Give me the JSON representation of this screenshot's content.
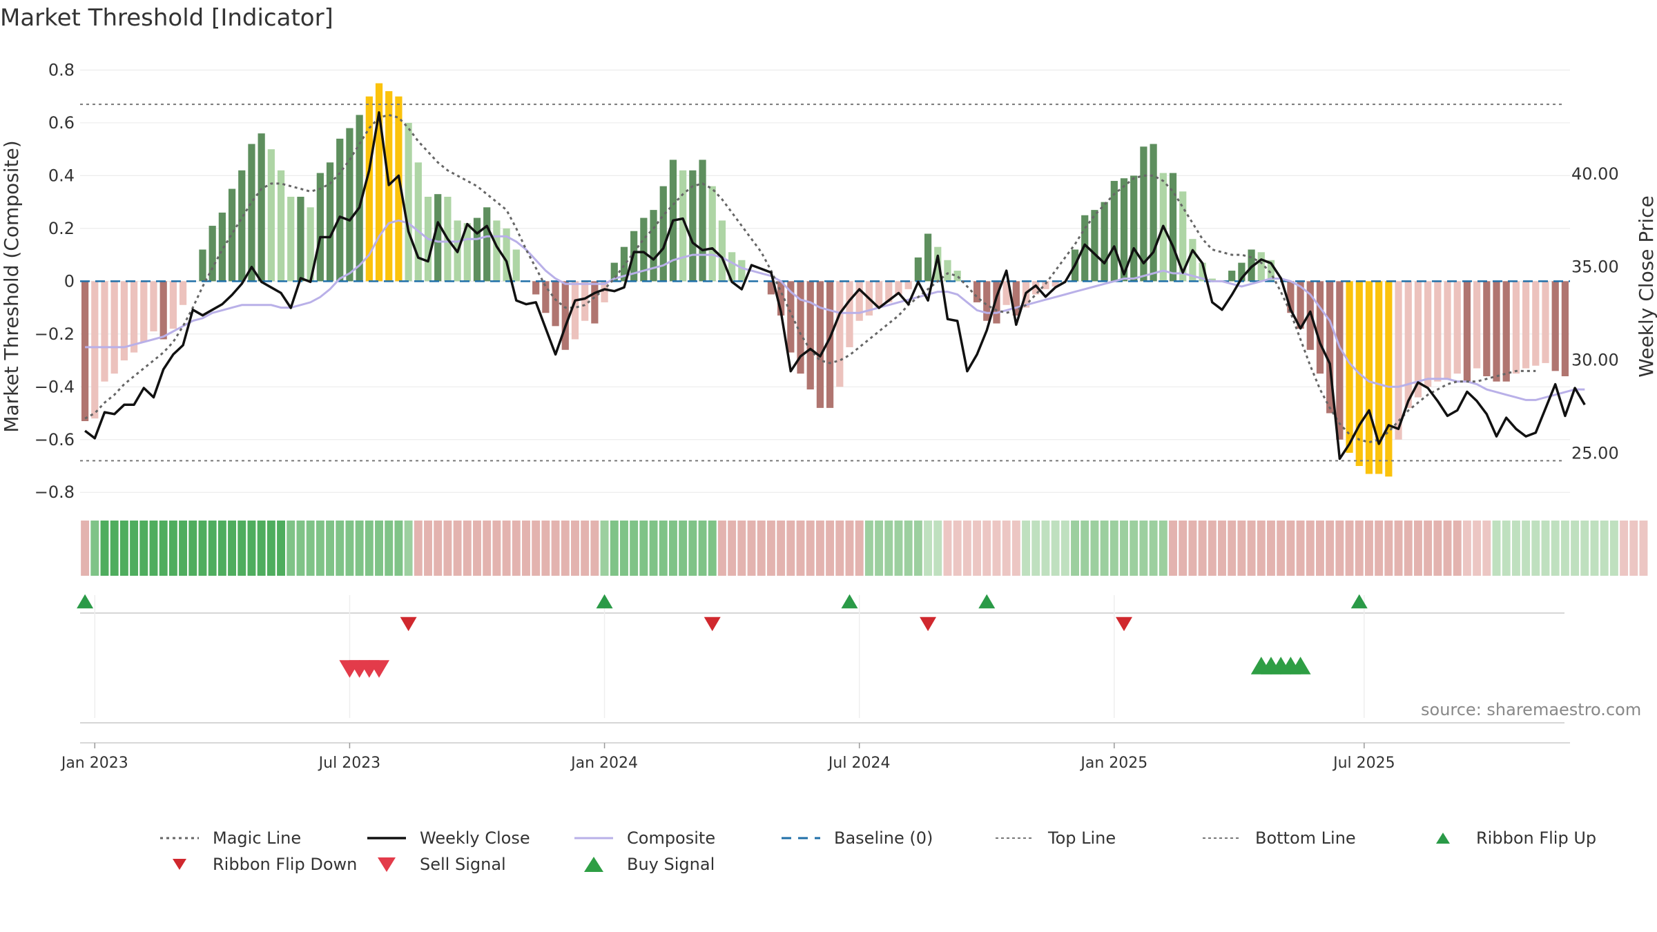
{
  "title": "Market Threshold [Indicator]",
  "source": "source: sharemaestro.com",
  "chart_data": {
    "type": "bar",
    "ylabel_left": "Market Threshold (Composite)",
    "ylabel_right": "Weekly Close Price",
    "ylim_left": [
      -0.87,
      0.83
    ],
    "ylim_right": [
      21.9,
      46.0
    ],
    "yticks_left": [
      0.8,
      0.6,
      0.4,
      0.2,
      0,
      -0.2,
      -0.4,
      -0.6,
      -0.8
    ],
    "yticks_left_labels": [
      "0.8",
      "0.6",
      "0.4",
      "0.2",
      "0",
      "−0.2",
      "−0.4",
      "−0.6",
      "−0.8"
    ],
    "yticks_right": [
      40,
      35,
      30,
      25
    ],
    "yticks_right_labels": [
      "40.00",
      "35.00",
      "30.00",
      "25.00"
    ],
    "xticks": [
      {
        "label": "Jan 2023",
        "week": 1.5
      },
      {
        "label": "Jul 2023",
        "week": 27.5
      },
      {
        "label": "Jan 2024",
        "week": 53.5
      },
      {
        "label": "Jul 2024",
        "week": 79.5
      },
      {
        "label": "Jan 2025",
        "week": 105.5
      },
      {
        "label": "Jul 2025",
        "week": 131
      }
    ],
    "top_line": 0.67,
    "bottom_line": -0.68,
    "composite_bars": [
      -0.53,
      -0.52,
      -0.38,
      -0.35,
      -0.3,
      -0.27,
      -0.23,
      -0.19,
      -0.22,
      -0.18,
      -0.09,
      0,
      0.12,
      0.21,
      0.26,
      0.35,
      0.42,
      0.52,
      0.56,
      0.5,
      0.42,
      0.32,
      0.32,
      0.28,
      0.41,
      0.45,
      0.54,
      0.58,
      0.63,
      0.7,
      0.75,
      0.72,
      0.7,
      0.6,
      0.45,
      0.32,
      0.33,
      0.32,
      0.23,
      0.22,
      0.24,
      0.28,
      0.23,
      0.2,
      0.12,
      0,
      -0.05,
      -0.12,
      -0.17,
      -0.26,
      -0.22,
      -0.15,
      -0.16,
      -0.08,
      0.07,
      0.13,
      0.19,
      0.24,
      0.27,
      0.36,
      0.46,
      0.42,
      0.42,
      0.46,
      0.36,
      0.23,
      0.11,
      0.08,
      0,
      0,
      -0.05,
      -0.13,
      -0.27,
      -0.35,
      -0.41,
      -0.48,
      -0.48,
      -0.4,
      -0.25,
      -0.15,
      -0.13,
      -0.1,
      -0.08,
      -0.05,
      -0.03,
      0.09,
      0.18,
      0.13,
      0.08,
      0.04,
      0,
      -0.08,
      -0.15,
      -0.16,
      -0.09,
      -0.13,
      -0.1,
      -0.05,
      -0.03,
      -0.02,
      0,
      0.12,
      0.25,
      0.27,
      0.3,
      0.38,
      0.39,
      0.4,
      0.51,
      0.52,
      0.41,
      0.41,
      0.34,
      0.16,
      0.07,
      0.01,
      0,
      0.04,
      0.07,
      0.12,
      0.11,
      0.08,
      0,
      -0.12,
      -0.18,
      -0.26,
      -0.35,
      -0.5,
      -0.6,
      -0.65,
      -0.7,
      -0.73,
      -0.73,
      -0.74,
      -0.6,
      -0.48,
      -0.44,
      -0.4,
      -0.38,
      -0.37,
      -0.35,
      -0.38,
      -0.33,
      -0.36,
      -0.38,
      -0.38,
      -0.35,
      -0.33,
      -0.32,
      -0.31,
      -0.34,
      -0.36
    ],
    "weekly_close": [
      26.2,
      25.8,
      27.2,
      27.1,
      27.6,
      27.6,
      28.5,
      28.0,
      29.5,
      30.3,
      30.8,
      32.7,
      32.4,
      32.7,
      33.0,
      33.5,
      34.1,
      35.0,
      34.2,
      33.9,
      33.6,
      32.8,
      34.4,
      34.2,
      36.6,
      36.6,
      37.7,
      37.5,
      38.2,
      40.2,
      43.3,
      39.4,
      39.9,
      36.9,
      35.5,
      35.3,
      37.4,
      36.5,
      35.8,
      37.3,
      36.8,
      37.2,
      36.1,
      35.3,
      33.2,
      33.0,
      33.1,
      31.7,
      30.3,
      31.8,
      33.2,
      33.3,
      33.6,
      33.8,
      33.7,
      33.9,
      35.8,
      35.8,
      35.4,
      36.0,
      37.5,
      37.6,
      36.3,
      35.9,
      36.0,
      35.5,
      34.2,
      33.8,
      35.1,
      34.9,
      34.7,
      32.6,
      29.4,
      30.2,
      30.6,
      30.2,
      31.2,
      32.5,
      33.2,
      33.8,
      33.3,
      32.8,
      33.2,
      33.6,
      33.0,
      34.2,
      33.2,
      35.6,
      32.2,
      32.1,
      29.4,
      30.3,
      31.6,
      33.4,
      34.8,
      31.9,
      33.6,
      34.0,
      33.4,
      33.9,
      34.2,
      35.1,
      36.2,
      35.7,
      35.2,
      36.1,
      34.6,
      36.0,
      35.2,
      35.8,
      37.2,
      36.1,
      34.7,
      35.9,
      35.2,
      33.1,
      32.7,
      33.5,
      34.4,
      35.0,
      35.4,
      35.2,
      34.4,
      32.7,
      31.7,
      32.6,
      30.9,
      29.8,
      24.7,
      25.5,
      26.5,
      27.3,
      25.5,
      26.5,
      26.3,
      27.8,
      28.8,
      28.5,
      27.8,
      27.0,
      27.3,
      28.3,
      27.8,
      27.1,
      25.9,
      26.9,
      26.3,
      25.9,
      26.1,
      27.4,
      28.7,
      27.0,
      28.5,
      27.6
    ],
    "composite_line": [
      -0.25,
      -0.25,
      -0.25,
      -0.25,
      -0.25,
      -0.24,
      -0.23,
      -0.22,
      -0.21,
      -0.19,
      -0.17,
      -0.15,
      -0.14,
      -0.12,
      -0.11,
      -0.1,
      -0.09,
      -0.09,
      -0.09,
      -0.09,
      -0.1,
      -0.1,
      -0.09,
      -0.08,
      -0.06,
      -0.03,
      0.01,
      0.03,
      0.06,
      0.1,
      0.17,
      0.22,
      0.23,
      0.22,
      0.19,
      0.16,
      0.15,
      0.15,
      0.15,
      0.16,
      0.16,
      0.17,
      0.17,
      0.17,
      0.15,
      0.12,
      0.08,
      0.04,
      0.01,
      -0.01,
      -0.01,
      -0.01,
      -0.01,
      -0.01,
      0.01,
      0.02,
      0.03,
      0.04,
      0.05,
      0.06,
      0.08,
      0.09,
      0.1,
      0.1,
      0.1,
      0.09,
      0.07,
      0.05,
      0.04,
      0.03,
      0.02,
      0,
      -0.04,
      -0.07,
      -0.08,
      -0.1,
      -0.11,
      -0.12,
      -0.12,
      -0.12,
      -0.11,
      -0.1,
      -0.09,
      -0.08,
      -0.07,
      -0.06,
      -0.05,
      -0.04,
      -0.04,
      -0.05,
      -0.08,
      -0.11,
      -0.12,
      -0.12,
      -0.11,
      -0.1,
      -0.09,
      -0.08,
      -0.07,
      -0.06,
      -0.05,
      -0.04,
      -0.03,
      -0.02,
      -0.01,
      0,
      0.01,
      0.01,
      0.02,
      0.03,
      0.04,
      0.03,
      0.03,
      0.02,
      0.01,
      0,
      0,
      -0.01,
      -0.02,
      -0.01,
      0,
      0.01,
      0.01,
      0,
      -0.02,
      -0.05,
      -0.1,
      -0.15,
      -0.25,
      -0.31,
      -0.35,
      -0.38,
      -0.39,
      -0.4,
      -0.4,
      -0.39,
      -0.38,
      -0.37,
      -0.37,
      -0.37,
      -0.38,
      -0.38,
      -0.39,
      -0.41,
      -0.42,
      -0.43,
      -0.44,
      -0.45,
      -0.45,
      -0.44,
      -0.43,
      -0.42,
      -0.41,
      -0.41
    ],
    "magic_line": [
      -0.52,
      -0.5,
      -0.46,
      -0.43,
      -0.39,
      -0.36,
      -0.33,
      -0.3,
      -0.27,
      -0.23,
      -0.17,
      -0.1,
      -0.02,
      0.05,
      0.12,
      0.18,
      0.24,
      0.3,
      0.35,
      0.37,
      0.37,
      0.36,
      0.35,
      0.34,
      0.35,
      0.37,
      0.41,
      0.46,
      0.52,
      0.58,
      0.62,
      0.63,
      0.62,
      0.58,
      0.53,
      0.49,
      0.45,
      0.42,
      0.4,
      0.38,
      0.36,
      0.33,
      0.3,
      0.27,
      0.2,
      0.12,
      0.05,
      -0.02,
      -0.07,
      -0.1,
      -0.1,
      -0.09,
      -0.06,
      -0.03,
      0.01,
      0.06,
      0.11,
      0.16,
      0.2,
      0.25,
      0.29,
      0.33,
      0.36,
      0.37,
      0.35,
      0.31,
      0.26,
      0.21,
      0.16,
      0.11,
      0.04,
      -0.04,
      -0.12,
      -0.2,
      -0.26,
      -0.3,
      -0.31,
      -0.3,
      -0.28,
      -0.25,
      -0.22,
      -0.19,
      -0.16,
      -0.13,
      -0.09,
      -0.06,
      -0.03,
      0,
      0.03,
      0.02,
      -0.02,
      -0.06,
      -0.09,
      -0.11,
      -0.12,
      -0.11,
      -0.09,
      -0.05,
      -0.01,
      0.04,
      0.09,
      0.14,
      0.2,
      0.25,
      0.29,
      0.33,
      0.36,
      0.39,
      0.4,
      0.4,
      0.38,
      0.34,
      0.28,
      0.22,
      0.16,
      0.12,
      0.11,
      0.1,
      0.1,
      0.09,
      0.07,
      0.03,
      -0.04,
      -0.12,
      -0.22,
      -0.32,
      -0.41,
      -0.48,
      -0.54,
      -0.58,
      -0.6,
      -0.61,
      -0.6,
      -0.57,
      -0.53,
      -0.49,
      -0.46,
      -0.43,
      -0.41,
      -0.39,
      -0.38,
      -0.38,
      -0.38,
      -0.37,
      -0.36,
      -0.35,
      -0.34,
      -0.34,
      -0.34
    ],
    "ribbon": [
      2,
      3,
      4,
      4,
      4,
      4,
      4,
      4,
      4,
      4,
      4,
      4,
      4,
      4,
      4,
      4,
      4,
      4,
      4,
      4,
      4,
      3,
      3,
      3,
      3,
      3,
      3,
      3,
      3,
      3,
      3,
      3,
      3,
      2,
      2,
      2,
      2,
      2,
      2,
      2,
      2,
      2,
      2,
      2,
      2,
      2,
      2,
      2,
      2,
      2,
      2,
      2,
      2,
      2,
      3,
      3,
      3,
      3,
      3,
      3,
      3,
      3,
      3,
      3,
      3,
      2,
      2,
      2,
      2,
      2,
      2,
      2,
      2,
      2,
      2,
      2,
      2,
      2,
      2,
      2,
      2,
      2,
      2,
      2,
      2,
      2,
      1,
      1,
      1,
      1,
      1,
      1,
      1,
      1,
      1,
      1,
      1,
      1,
      1,
      1,
      1,
      2,
      2,
      2,
      2,
      2,
      2,
      2,
      2,
      2,
      2,
      2,
      2,
      2,
      2,
      2,
      2,
      2,
      2,
      2,
      2,
      2,
      2,
      2,
      2,
      2,
      2,
      2,
      2,
      2,
      2,
      2,
      2,
      2,
      2,
      2,
      2,
      2,
      2,
      2,
      2,
      1,
      1,
      1,
      1,
      1,
      1,
      1,
      1,
      1,
      1,
      1,
      1,
      1,
      1,
      1,
      1,
      1,
      1,
      1
    ],
    "ribbon_sign": [
      -1,
      1,
      1,
      1,
      1,
      1,
      1,
      1,
      1,
      1,
      1,
      1,
      1,
      1,
      1,
      1,
      1,
      1,
      1,
      1,
      1,
      1,
      1,
      1,
      1,
      1,
      1,
      1,
      1,
      1,
      1,
      1,
      1,
      1,
      -1,
      -1,
      -1,
      -1,
      -1,
      -1,
      -1,
      -1,
      -1,
      -1,
      -1,
      -1,
      -1,
      -1,
      -1,
      -1,
      -1,
      -1,
      -1,
      1,
      1,
      1,
      1,
      1,
      1,
      1,
      1,
      1,
      1,
      1,
      1,
      -1,
      -1,
      -1,
      -1,
      -1,
      -1,
      -1,
      -1,
      -1,
      -1,
      -1,
      -1,
      -1,
      -1,
      -1,
      1,
      1,
      1,
      1,
      1,
      1,
      1,
      1,
      -1,
      -1,
      -1,
      -1,
      -1,
      -1,
      -1,
      -1,
      1,
      1,
      1,
      1,
      1,
      1,
      1,
      1,
      1,
      1,
      1,
      1,
      1,
      1,
      1,
      -1,
      -1,
      -1,
      -1,
      -1,
      -1,
      -1,
      -1,
      -1,
      -1,
      -1,
      -1,
      -1,
      -1,
      -1,
      -1,
      -1,
      -1,
      -1,
      -1,
      -1,
      -1,
      -1,
      -1,
      -1,
      -1,
      -1,
      -1,
      -1,
      -1,
      -1,
      -1,
      -1,
      1,
      1,
      1,
      1,
      1,
      1,
      1,
      1,
      1,
      1,
      1,
      1,
      1
    ],
    "ribbon_flip_up_weeks": [
      1,
      54,
      79,
      93,
      131
    ],
    "ribbon_flip_down_weeks": [
      34,
      65,
      87,
      107
    ],
    "sell_signal_weeks": [
      28,
      29,
      30,
      31
    ],
    "buy_signal_weeks": [
      121,
      122,
      123,
      124,
      125
    ],
    "colors": {
      "bar_pos_strong": "#5e8f5e",
      "bar_pos_weak": "#aed5a5",
      "bar_neg_strong": "#b07570",
      "bar_neg_weak": "#ecc2bd",
      "bar_extreme": "#fbc20c",
      "weekly_close": "#111111",
      "composite": "#b9b0e8",
      "magic_line": "#666666",
      "baseline": "#1f6fa8",
      "threshold_line": "#777777",
      "flip_up": "#2a9a47",
      "flip_down": "#d0282e",
      "sell": "#e33b4a",
      "buy": "#2e9e44"
    },
    "legend": [
      {
        "label": "Magic Line",
        "kind": "dotted-line"
      },
      {
        "label": "Weekly Close",
        "kind": "solid-line"
      },
      {
        "label": "Composite",
        "kind": "purple-line"
      },
      {
        "label": "Baseline (0)",
        "kind": "dashed-line"
      },
      {
        "label": "Top Line",
        "kind": "thin-dotted"
      },
      {
        "label": "Bottom Line",
        "kind": "thin-dotted"
      },
      {
        "label": "Ribbon Flip Up",
        "kind": "tri-up-small"
      },
      {
        "label": "Ribbon Flip Down",
        "kind": "tri-down-small"
      },
      {
        "label": "Sell Signal",
        "kind": "tri-down-large"
      },
      {
        "label": "Buy Signal",
        "kind": "tri-up-large"
      }
    ]
  }
}
